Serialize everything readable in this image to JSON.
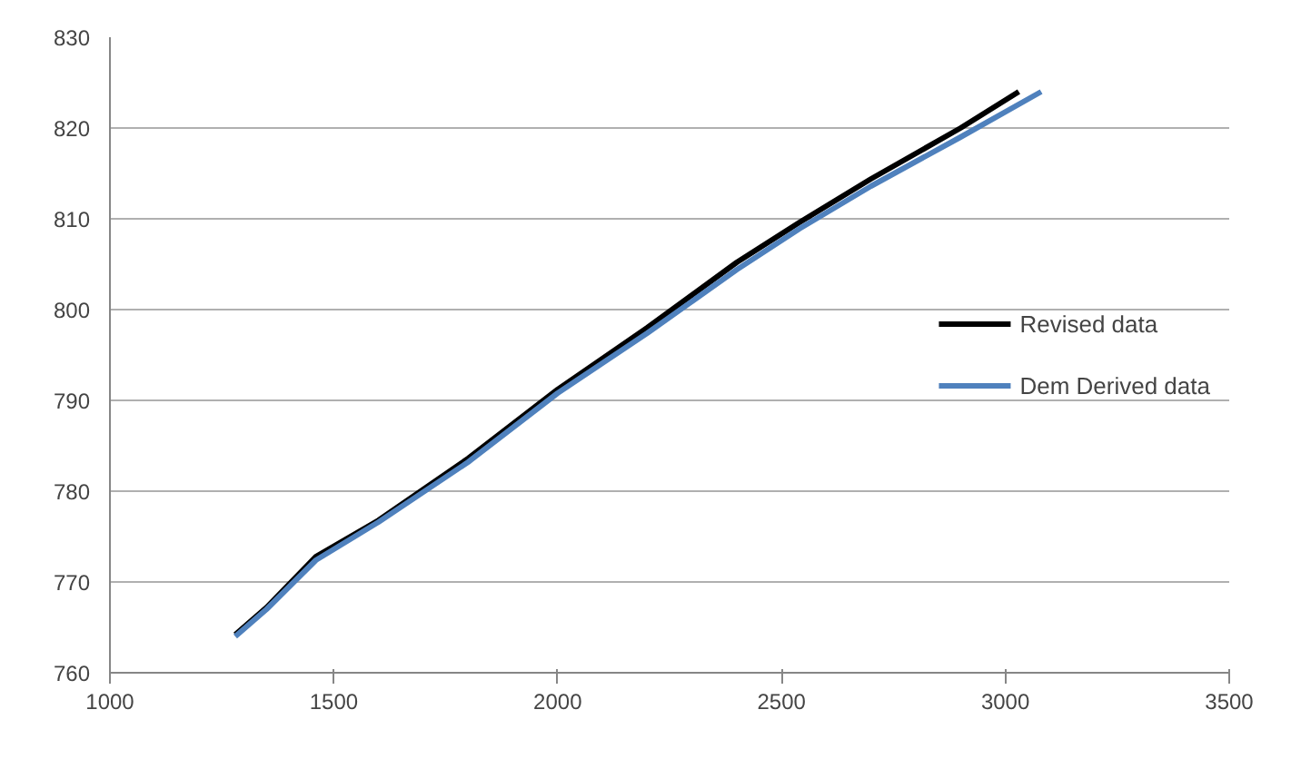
{
  "chart_data": {
    "type": "line",
    "xlim": [
      1000,
      3500
    ],
    "xticks": [
      1000,
      1500,
      2000,
      2500,
      3000,
      3500
    ],
    "ylim": [
      760,
      830
    ],
    "yticks": [
      760,
      770,
      780,
      790,
      800,
      810,
      820,
      830
    ],
    "grid": "y",
    "legend": "right",
    "line_style": "solid",
    "marker": "none",
    "series": [
      {
        "name": "Revised data",
        "color": "#000000",
        "x": [
          1280,
          1350,
          1460,
          1600,
          1800,
          2000,
          2200,
          2400,
          2540,
          2700,
          2900,
          3030
        ],
        "values": [
          764.2,
          767.2,
          772.8,
          776.8,
          783.6,
          791.2,
          798.0,
          805.2,
          809.6,
          814.4,
          820.0,
          824.0
        ]
      },
      {
        "name": "Dem Derived data",
        "color": "#4f81bd",
        "x": [
          1280,
          1350,
          1460,
          1600,
          1800,
          2000,
          2200,
          2400,
          2540,
          2700,
          2900,
          3080
        ],
        "values": [
          764.0,
          767.0,
          772.4,
          776.6,
          783.2,
          790.8,
          797.4,
          804.4,
          808.9,
          813.6,
          819.0,
          824.0
        ]
      }
    ]
  }
}
